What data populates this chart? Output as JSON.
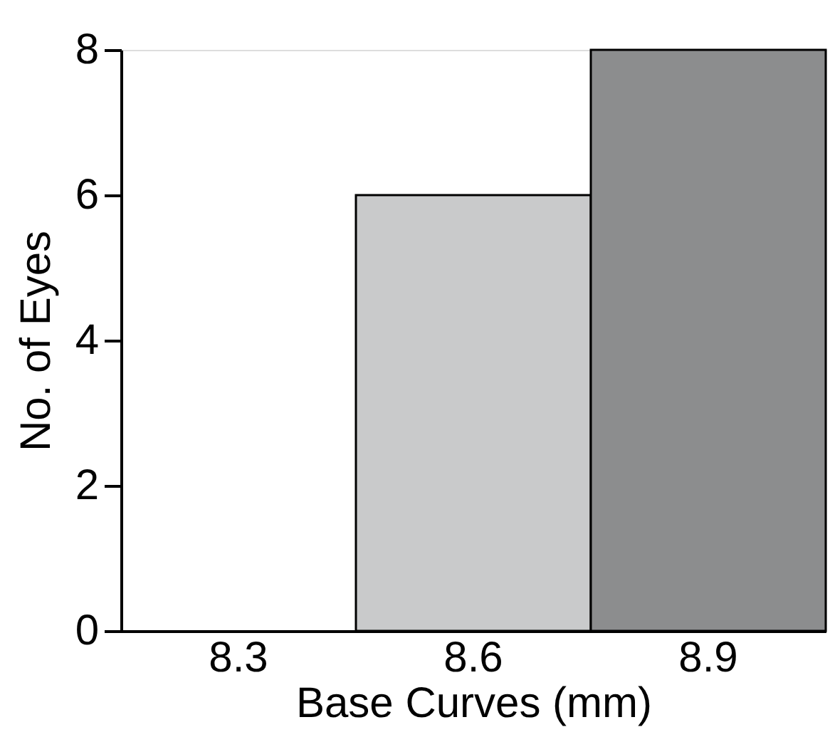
{
  "chart_data": {
    "type": "bar",
    "xlabel": "Base Curves (mm)",
    "ylabel": "No. of Eyes",
    "categories": [
      "8.3",
      "8.6",
      "8.9"
    ],
    "values": [
      0,
      6,
      8
    ],
    "colors": [
      null,
      "#c9cacb",
      "#8c8d8e"
    ],
    "ylim": [
      0,
      8
    ],
    "yticks": [
      0,
      2,
      4,
      6,
      8
    ],
    "grid": false
  }
}
